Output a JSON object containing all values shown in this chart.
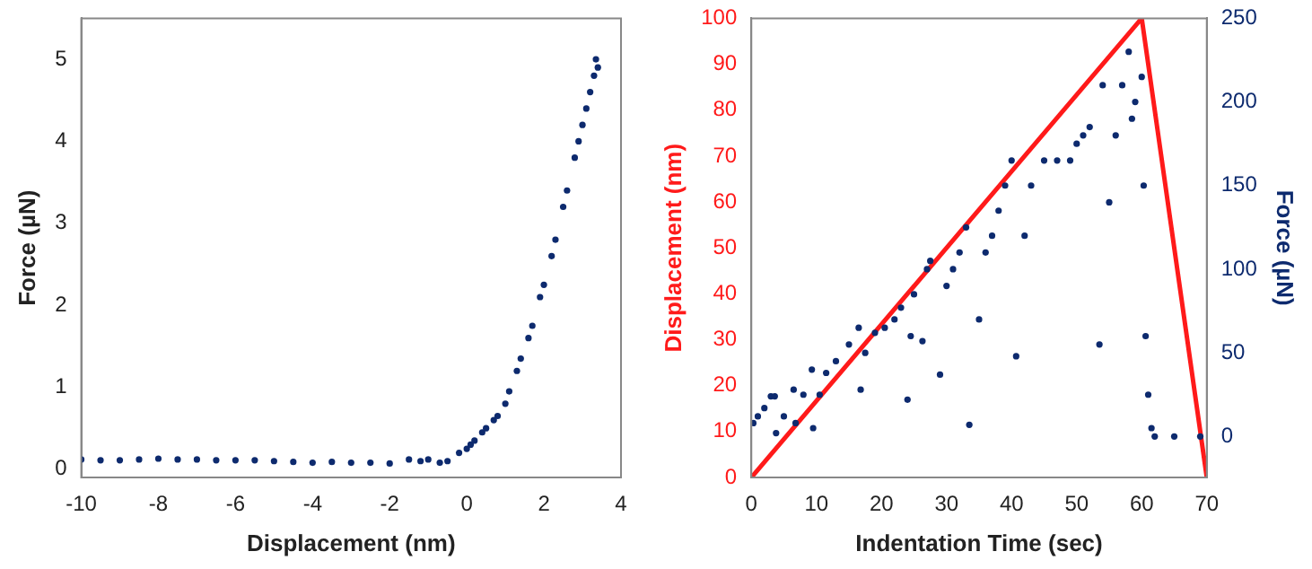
{
  "chart_data": [
    {
      "type": "scatter",
      "xlabel": "Displacement (nm)",
      "ylabel": "Force (µN)",
      "xlim": [
        -10,
        4
      ],
      "xticks": [
        -10,
        -8,
        -6,
        -4,
        -2,
        0,
        2,
        4
      ],
      "ylim": [
        -0.1,
        5.5
      ],
      "yticks": [
        0,
        1,
        2,
        3,
        4,
        5
      ],
      "grid": false,
      "legend": false,
      "marker": "circle",
      "series": [
        {
          "color": "#0d2a6e",
          "x": [
            -10,
            -9.5,
            -9,
            -8.5,
            -8,
            -7.5,
            -7,
            -6.5,
            -6,
            -5.5,
            -5,
            -4.5,
            -4,
            -3.5,
            -3,
            -2.5,
            -2,
            -1.5,
            -1.2,
            -1,
            -0.7,
            -0.5,
            -0.2,
            0,
            0.1,
            0.2,
            0.4,
            0.5,
            0.7,
            0.8,
            1,
            1.1,
            1.3,
            1.4,
            1.6,
            1.7,
            1.9,
            2,
            2.2,
            2.3,
            2.5,
            2.6,
            2.8,
            2.9,
            3,
            3.1,
            3.2,
            3.3,
            3.35,
            3.4
          ],
          "values": [
            0.12,
            0.11,
            0.11,
            0.12,
            0.13,
            0.12,
            0.12,
            0.11,
            0.11,
            0.11,
            0.1,
            0.09,
            0.08,
            0.09,
            0.08,
            0.08,
            0.07,
            0.12,
            0.1,
            0.12,
            0.08,
            0.1,
            0.2,
            0.25,
            0.3,
            0.35,
            0.45,
            0.5,
            0.6,
            0.65,
            0.8,
            0.95,
            1.2,
            1.35,
            1.6,
            1.75,
            2.1,
            2.25,
            2.6,
            2.8,
            3.2,
            3.4,
            3.8,
            4.0,
            4.2,
            4.4,
            4.6,
            4.8,
            5.0,
            4.9
          ]
        }
      ]
    },
    {
      "type": "scatter",
      "xlabel": "Indentation Time (sec)",
      "ylabel": "Displacement (nm)",
      "y2label": "Force (µN)",
      "xlim": [
        0,
        70
      ],
      "xticks": [
        0,
        10,
        20,
        30,
        40,
        50,
        60,
        70
      ],
      "ylim": [
        0,
        100
      ],
      "yticks": [
        0,
        10,
        20,
        30,
        40,
        50,
        60,
        70,
        80,
        90,
        100
      ],
      "y2lim": [
        -24.5,
        250
      ],
      "y2ticks": [
        0,
        50,
        100,
        150,
        200,
        250
      ],
      "grid": false,
      "legend": false,
      "series": [
        {
          "axis": "y2",
          "marker": "circle",
          "color": "#0d2a6e",
          "x": [
            0.3,
            1,
            2,
            3,
            3.6,
            3.8,
            5,
            6.5,
            6.8,
            8,
            9.3,
            9.5,
            10.5,
            11.5,
            13,
            15,
            16.5,
            16.8,
            17.5,
            19,
            20.5,
            22,
            23,
            24,
            24.5,
            25,
            26.3,
            27,
            27.5,
            29,
            30,
            31,
            32,
            33,
            33.5,
            35,
            36,
            37,
            38,
            39,
            40,
            40.7,
            42,
            43,
            45,
            47,
            49,
            50,
            51,
            52,
            53.5,
            54,
            55,
            56,
            57,
            58,
            58.5,
            59,
            60,
            60.3,
            60.6,
            61,
            61.5,
            62,
            65,
            69
          ],
          "values": [
            8,
            12,
            17,
            24,
            24,
            2,
            12,
            28,
            8,
            25,
            40,
            5,
            25,
            38,
            45,
            55,
            65,
            28,
            50,
            62,
            65,
            70,
            77,
            22,
            60,
            85,
            57,
            100,
            105,
            37,
            90,
            100,
            110,
            125,
            7,
            70,
            110,
            120,
            135,
            150,
            165,
            48,
            120,
            150,
            165,
            165,
            165,
            175,
            180,
            185,
            55,
            210,
            140,
            180,
            210,
            230,
            190,
            200,
            215,
            150,
            60,
            25,
            5,
            0,
            0,
            0
          ]
        },
        {
          "type": "line",
          "axis": "y",
          "color": "#ff1a1a",
          "x": [
            0,
            60,
            70
          ],
          "values": [
            0,
            100,
            0
          ]
        }
      ]
    }
  ]
}
